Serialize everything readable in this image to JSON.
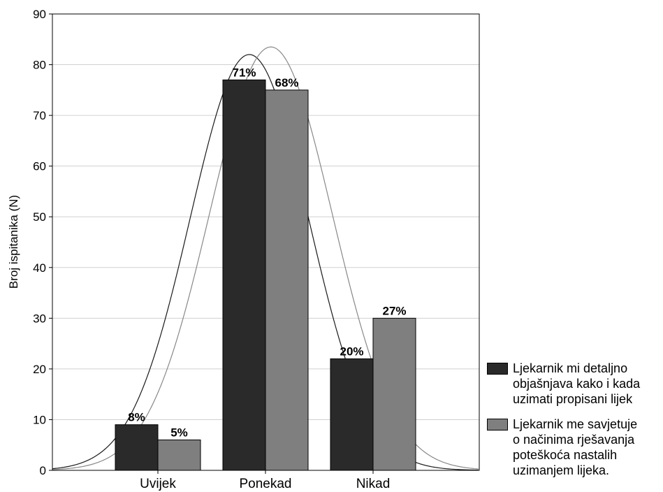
{
  "chart_data": {
    "type": "bar",
    "categories": [
      "Uvijek",
      "Ponekad",
      "Nikad"
    ],
    "ylabel": "Broj ispitanika (N)",
    "ylim": [
      0,
      90
    ],
    "yticks": [
      "0",
      "10",
      "20",
      "30",
      "40",
      "50",
      "60",
      "70",
      "80",
      "90"
    ],
    "grid": true,
    "legend_position": "right",
    "series": [
      {
        "name": "Ljekarnik mi detaljno objašnjava kako i kada uzimati propisani lijek",
        "legend_lines": [
          "Ljekarnik mi detaljno",
          "objašnjava kako i kada",
          "uzimati propisani lijek"
        ],
        "color": "#2a2a2a",
        "values": [
          9,
          77,
          22
        ],
        "labels": [
          "8%",
          "71%",
          "20%"
        ]
      },
      {
        "name": "Ljekarnik me savjetuje o načinima rješavanja poteškoća nastalih uzimanjem lijeka.",
        "legend_lines": [
          "Ljekarnik me savjetuje",
          "o načinima rješavanja",
          "poteškoća nastalih",
          "uzimanjem lijeka."
        ],
        "color": "#7f7f7f",
        "values": [
          6,
          75,
          30
        ],
        "labels": [
          "5%",
          "68%",
          "27%"
        ]
      }
    ],
    "fitted_curves": [
      {
        "shape": "normal",
        "peak": 82,
        "center_category_index": 1,
        "spread_categories": 0.55,
        "shift_categories": -0.15,
        "color": "#1a1a1a"
      },
      {
        "shape": "normal",
        "peak": 83.5,
        "center_category_index": 1,
        "spread_categories": 0.57,
        "shift_categories": 0.05,
        "color": "#888888"
      }
    ]
  }
}
